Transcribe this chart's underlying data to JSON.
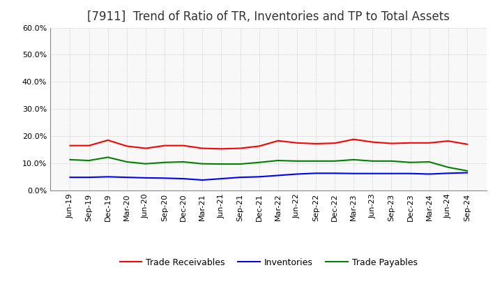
{
  "title": "[7911]  Trend of Ratio of TR, Inventories and TP to Total Assets",
  "x_labels": [
    "Jun-19",
    "Sep-19",
    "Dec-19",
    "Mar-20",
    "Jun-20",
    "Sep-20",
    "Dec-20",
    "Mar-21",
    "Jun-21",
    "Sep-21",
    "Dec-21",
    "Mar-22",
    "Jun-22",
    "Sep-22",
    "Dec-22",
    "Mar-23",
    "Jun-23",
    "Sep-23",
    "Dec-23",
    "Mar-24",
    "Jun-24",
    "Sep-24"
  ],
  "trade_receivables": [
    0.165,
    0.165,
    0.185,
    0.163,
    0.155,
    0.165,
    0.165,
    0.155,
    0.153,
    0.155,
    0.163,
    0.183,
    0.175,
    0.172,
    0.174,
    0.188,
    0.178,
    0.173,
    0.175,
    0.175,
    0.182,
    0.17
  ],
  "inventories": [
    0.048,
    0.048,
    0.05,
    0.048,
    0.046,
    0.045,
    0.043,
    0.038,
    0.043,
    0.048,
    0.05,
    0.055,
    0.06,
    0.063,
    0.063,
    0.062,
    0.062,
    0.062,
    0.062,
    0.06,
    0.063,
    0.065
  ],
  "trade_payables": [
    0.113,
    0.11,
    0.122,
    0.105,
    0.098,
    0.103,
    0.105,
    0.098,
    0.097,
    0.097,
    0.103,
    0.11,
    0.108,
    0.108,
    0.108,
    0.113,
    0.108,
    0.108,
    0.103,
    0.105,
    0.085,
    0.072
  ],
  "line_colors": {
    "trade_receivables": "#FF0000",
    "inventories": "#0000FF",
    "trade_payables": "#008000"
  },
  "legend_labels": [
    "Trade Receivables",
    "Inventories",
    "Trade Payables"
  ],
  "ylim": [
    0.0,
    0.6
  ],
  "yticks": [
    0.0,
    0.1,
    0.2,
    0.3,
    0.4,
    0.5,
    0.6
  ],
  "background_color": "#FFFFFF",
  "plot_bg_color": "#F8F8F8",
  "grid_color": "#AAAAAA",
  "title_fontsize": 12,
  "tick_fontsize": 8,
  "legend_fontsize": 9,
  "line_width": 1.5
}
